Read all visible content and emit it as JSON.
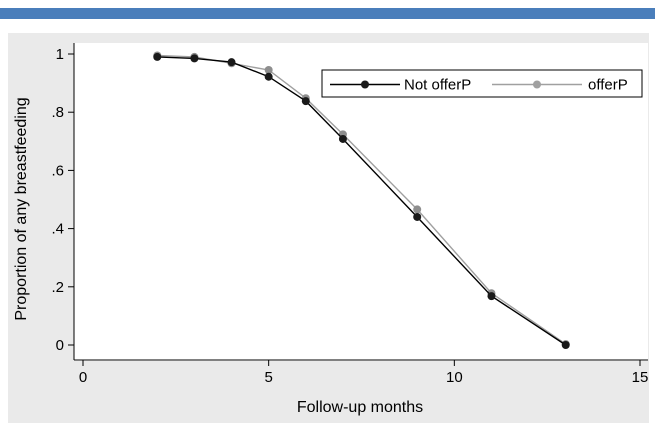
{
  "chart_data": {
    "type": "line",
    "title": "",
    "xlabel": "Follow-up months",
    "ylabel": "Proportion of any breastfeeding",
    "xlim": [
      0,
      15
    ],
    "ylim": [
      0,
      1
    ],
    "x_ticks": [
      0,
      5,
      10,
      15
    ],
    "x_tick_labels": [
      "0",
      "5",
      "10",
      "15"
    ],
    "y_ticks": [
      0,
      0.2,
      0.4,
      0.6,
      0.8,
      1
    ],
    "y_tick_labels": [
      "0",
      ".2",
      ".4",
      ".6",
      ".8",
      "1"
    ],
    "grid": false,
    "legend_position": "top-right",
    "series": [
      {
        "name": "Not offerP",
        "color": "#000000",
        "x": [
          2,
          3,
          4,
          5,
          6,
          7,
          9,
          11,
          13
        ],
        "y": [
          0.99,
          0.985,
          0.972,
          0.922,
          0.838,
          0.708,
          0.44,
          0.168,
          0.0
        ]
      },
      {
        "name": "offerP",
        "color": "#a0a0a0",
        "x": [
          2,
          3,
          4,
          5,
          6,
          7,
          9,
          11,
          13
        ],
        "y": [
          0.995,
          0.99,
          0.968,
          0.945,
          0.848,
          0.724,
          0.466,
          0.178,
          0.003
        ]
      }
    ]
  }
}
